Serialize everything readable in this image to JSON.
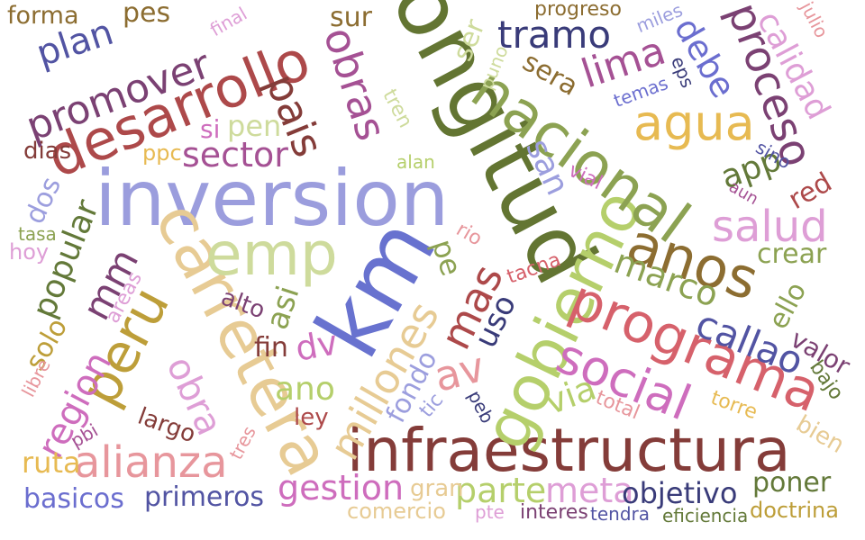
{
  "words": [
    {
      "text": "inversion",
      "color": "#9b9ddd"
    },
    {
      "text": "longitud",
      "color": "#637532"
    },
    {
      "text": "km",
      "color": "#6872cf"
    },
    {
      "text": "infraestructura",
      "color": "#843c39"
    },
    {
      "text": "desarrollo",
      "color": "#ad494a"
    },
    {
      "text": "carretera",
      "color": "#e7cb94"
    },
    {
      "text": "gobierno",
      "color": "#b5cf6b"
    },
    {
      "text": "nacional",
      "color": "#8ca252"
    },
    {
      "text": "emp",
      "color": "#cedb9c"
    },
    {
      "text": "programa",
      "color": "#d6616b"
    },
    {
      "text": "anos",
      "color": "#8c6d31"
    },
    {
      "text": "peru",
      "color": "#bd9e39"
    },
    {
      "text": "social",
      "color": "#ce6dbd"
    },
    {
      "text": "alianza",
      "color": "#e7969c"
    },
    {
      "text": "agua",
      "color": "#e7ba52"
    },
    {
      "text": "millones",
      "color": "#e7cb94"
    },
    {
      "text": "proceso",
      "color": "#7b4173"
    },
    {
      "text": "promover",
      "color": "#7b4173"
    },
    {
      "text": "obras",
      "color": "#a55194"
    },
    {
      "text": "pais",
      "color": "#843c39"
    },
    {
      "text": "tramo",
      "color": "#393b79"
    },
    {
      "text": "salud",
      "color": "#de9ed6"
    },
    {
      "text": "mas",
      "color": "#ad494a"
    },
    {
      "text": "lima",
      "color": "#a55194"
    },
    {
      "text": "callao",
      "color": "#5254a3"
    },
    {
      "text": "obra",
      "color": "#de9ed6"
    },
    {
      "text": "region",
      "color": "#ce6dbd"
    },
    {
      "text": "av",
      "color": "#e7969c"
    },
    {
      "text": "mm",
      "color": "#7b4173"
    },
    {
      "text": "gestion",
      "color": "#ce6dbd"
    },
    {
      "text": "sector",
      "color": "#a55194"
    },
    {
      "text": "plan",
      "color": "#5254a3"
    },
    {
      "text": "debe",
      "color": "#6b6ecf"
    },
    {
      "text": "calidad",
      "color": "#de9ed6"
    },
    {
      "text": "parte",
      "color": "#b5cf6b"
    },
    {
      "text": "meta",
      "color": "#de9ed6"
    },
    {
      "text": "objetivo",
      "color": "#393b79"
    },
    {
      "text": "marco",
      "color": "#8ca252"
    },
    {
      "text": "popular",
      "color": "#637939"
    },
    {
      "text": "san",
      "color": "#9c9ede"
    },
    {
      "text": "dv",
      "color": "#ce6dbd"
    },
    {
      "text": "via",
      "color": "#b5cf6b"
    },
    {
      "text": "fondo",
      "color": "#9c9ede"
    },
    {
      "text": "uso",
      "color": "#393b79"
    },
    {
      "text": "ano",
      "color": "#b5cf6b"
    },
    {
      "text": "basicos",
      "color": "#6b6ecf"
    },
    {
      "text": "primeros",
      "color": "#5254a3"
    },
    {
      "text": "app",
      "color": "#637939"
    },
    {
      "text": "ruta",
      "color": "#e7ba52"
    },
    {
      "text": "poner",
      "color": "#637939"
    },
    {
      "text": "crear",
      "color": "#8ca252"
    },
    {
      "text": "ello",
      "color": "#8ca252"
    },
    {
      "text": "valor",
      "color": "#7b4173"
    },
    {
      "text": "asi",
      "color": "#8ca252"
    },
    {
      "text": "solo",
      "color": "#bd9e39"
    },
    {
      "text": "pe",
      "color": "#8ca252"
    },
    {
      "text": "ser",
      "color": "#cedb9c"
    },
    {
      "text": "sera",
      "color": "#8c6d31"
    },
    {
      "text": "red",
      "color": "#ad494a"
    },
    {
      "text": "pen",
      "color": "#cedb9c"
    },
    {
      "text": "pes",
      "color": "#8c6d31"
    },
    {
      "text": "sur",
      "color": "#8c6d31"
    },
    {
      "text": "forma",
      "color": "#8c6d31"
    },
    {
      "text": "largo",
      "color": "#843c39"
    },
    {
      "text": "alto",
      "color": "#7b4173"
    },
    {
      "text": "fin",
      "color": "#843c39"
    },
    {
      "text": "ley",
      "color": "#ad494a"
    },
    {
      "text": "dos",
      "color": "#9c9ede"
    },
    {
      "text": "si",
      "color": "#ce6dbd"
    },
    {
      "text": "dias",
      "color": "#843c39"
    },
    {
      "text": "tasa",
      "color": "#8ca252"
    },
    {
      "text": "hoy",
      "color": "#de9ed6"
    },
    {
      "text": "ppc",
      "color": "#e7ba52"
    },
    {
      "text": "gran",
      "color": "#e7cb94"
    },
    {
      "text": "comercio",
      "color": "#e7cb94"
    },
    {
      "text": "pte",
      "color": "#de9ed6"
    },
    {
      "text": "interes",
      "color": "#7b4173"
    },
    {
      "text": "tendra",
      "color": "#5254a3"
    },
    {
      "text": "eficiencia",
      "color": "#637939"
    },
    {
      "text": "doctrina",
      "color": "#bd9e39"
    },
    {
      "text": "progreso",
      "color": "#8c6d31"
    },
    {
      "text": "miles",
      "color": "#9c9ede"
    },
    {
      "text": "julio",
      "color": "#e7969c"
    },
    {
      "text": "final",
      "color": "#de9ed6"
    },
    {
      "text": "temas",
      "color": "#6b6ecf"
    },
    {
      "text": "eps",
      "color": "#393b79"
    },
    {
      "text": "sino",
      "color": "#5254a3"
    },
    {
      "text": "aun",
      "color": "#a55194"
    },
    {
      "text": "vial",
      "color": "#ce6dbd"
    },
    {
      "text": "alan",
      "color": "#b5cf6b"
    },
    {
      "text": "tren",
      "color": "#cedb9c"
    },
    {
      "text": "puno",
      "color": "#cedb9c"
    },
    {
      "text": "rio",
      "color": "#e7969c"
    },
    {
      "text": "tacna",
      "color": "#d6616b"
    },
    {
      "text": "peb",
      "color": "#393b79"
    },
    {
      "text": "tic",
      "color": "#9c9ede"
    },
    {
      "text": "total",
      "color": "#e7969c"
    },
    {
      "text": "torre",
      "color": "#e7ba52"
    },
    {
      "text": "bajo",
      "color": "#637939"
    },
    {
      "text": "bien",
      "color": "#e7cb94"
    },
    {
      "text": "libre",
      "color": "#e7969c"
    },
    {
      "text": "areas",
      "color": "#de9ed6"
    },
    {
      "text": "pbi",
      "color": "#a55194"
    },
    {
      "text": "tres",
      "color": "#e7969c"
    }
  ]
}
